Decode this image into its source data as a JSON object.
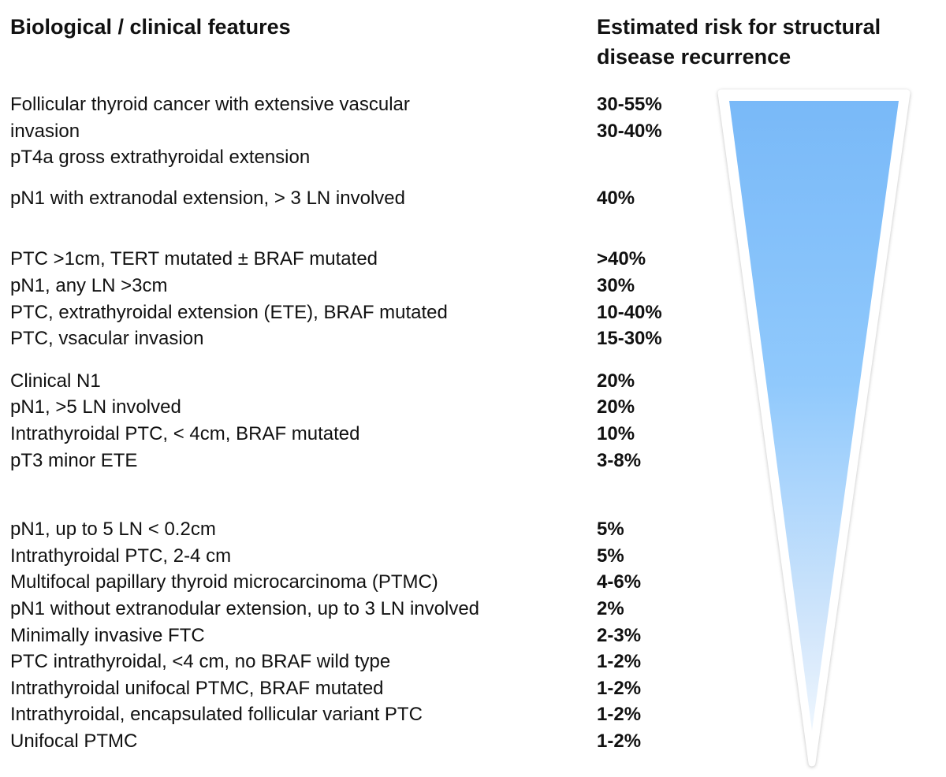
{
  "header": {
    "left_title": "Biological / clinical features",
    "right_title_lines": [
      "Estimated risk for structural",
      "disease recurrence"
    ]
  },
  "groups": [
    {
      "rows": [
        {
          "feature": "Follicular thyroid cancer with extensive vascular",
          "risk": "30-55%"
        },
        {
          "feature": "invasion",
          "risk": "30-40%"
        },
        {
          "feature": "pT4a gross extrathyroidal extension",
          "risk": ""
        }
      ]
    },
    {
      "rows": [
        {
          "feature": "pN1 with extranodal extension, > 3 LN involved",
          "risk": "40%"
        }
      ]
    },
    {
      "rows": [
        {
          "feature": "PTC >1cm, TERT mutated ± BRAF mutated",
          "risk": ">40%"
        },
        {
          "feature": "pN1, any LN >3cm",
          "risk": "30%"
        },
        {
          "feature": "PTC, extrathyroidal extension (ETE), BRAF mutated",
          "risk": "10-40%"
        },
        {
          "feature": "PTC, vsacular invasion",
          "risk": "15-30%"
        }
      ]
    },
    {
      "rows": [
        {
          "feature": "Clinical N1",
          "risk": "20%"
        },
        {
          "feature": "pN1, >5 LN involved",
          "risk": "20%"
        },
        {
          "feature": "Intrathyroidal PTC, < 4cm, BRAF mutated",
          "risk": "10%"
        },
        {
          "feature": "pT3 minor ETE",
          "risk": "3-8%"
        }
      ]
    },
    {
      "rows": [
        {
          "feature": "pN1, up to 5 LN < 0.2cm",
          "risk": "5%"
        },
        {
          "feature": "Intrathyroidal PTC, 2-4 cm",
          "risk": "5%"
        },
        {
          "feature": "Multifocal papillary thyroid microcarcinoma (PTMC)",
          "risk": "4-6%"
        },
        {
          "feature": "pN1 without extranodular extension, up to 3 LN involved",
          "risk": "2%"
        },
        {
          "feature": "Minimally invasive FTC",
          "risk": "2-3%"
        },
        {
          "feature": "PTC intrathyroidal, <4 cm, no BRAF wild type",
          "risk": "1-2%"
        },
        {
          "feature": "Intrathyroidal unifocal PTMC, BRAF mutated",
          "risk": "1-2%"
        },
        {
          "feature": "Intrathyroidal, encapsulated follicular variant PTC",
          "risk": "1-2%"
        },
        {
          "feature": "Unifocal PTMC",
          "risk": "1-2%"
        }
      ]
    }
  ],
  "funnel": {
    "meaning": "risk-decreases-downward",
    "top_color": "#79b9f8",
    "upper_mid_color": "#90c9fc",
    "lower_mid_color": "#d4e7fb",
    "tip_color": "#eef6fe",
    "rim_color": "#ffffff"
  }
}
